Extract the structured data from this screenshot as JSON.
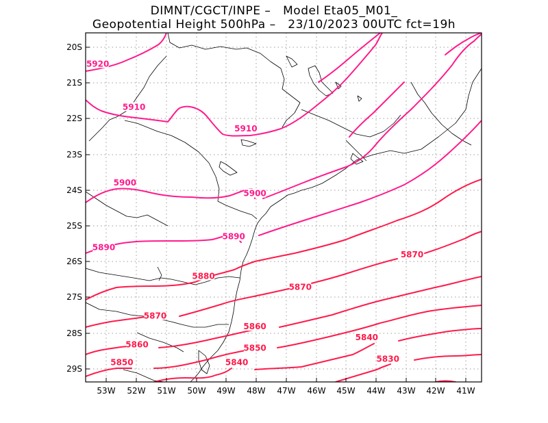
{
  "title": {
    "line1": "DIMNT/CGCT/INPE –   Model Eta05_M01_",
    "line2": "Geopotential Height 500hPa –   23/10/2023 00UTC fct=19h"
  },
  "axes": {
    "lat_labels": [
      "20S",
      "21S",
      "22S",
      "23S",
      "24S",
      "25S",
      "26S",
      "27S",
      "28S",
      "29S"
    ],
    "lon_labels": [
      "53W",
      "52W",
      "51W",
      "50W",
      "49W",
      "48W",
      "47W",
      "46W",
      "45W",
      "44W",
      "43W",
      "42W",
      "41W"
    ]
  },
  "colors": {
    "contour_magenta": "#ff1a8c",
    "contour_red": "#ff1a4a",
    "grid": "#9a9a9a",
    "coast": "#000000"
  },
  "chart_data": {
    "type": "contour-map",
    "variable": "Geopotential Height 500hPa",
    "units": "gpm",
    "lon_range": [
      -53.6,
      -40.5
    ],
    "lat_range": [
      -29.4,
      -19.7
    ],
    "contour_labels": [
      {
        "text": "5920",
        "lon": -53.2,
        "lat": -20.6
      },
      {
        "text": "5910",
        "lon": -52.0,
        "lat": -21.8
      },
      {
        "text": "5910",
        "lon": -48.3,
        "lat": -22.4
      },
      {
        "text": "5900",
        "lon": -52.3,
        "lat": -23.9
      },
      {
        "text": "5900",
        "lon": -48.0,
        "lat": -24.2
      },
      {
        "text": "5890",
        "lon": -48.7,
        "lat": -25.4
      },
      {
        "text": "5890",
        "lon": -53.0,
        "lat": -25.7
      },
      {
        "text": "5880",
        "lon": -49.7,
        "lat": -26.5
      },
      {
        "text": "5870",
        "lon": -46.5,
        "lat": -26.8
      },
      {
        "text": "5870",
        "lon": -42.8,
        "lat": -25.9
      },
      {
        "text": "5870",
        "lon": -51.3,
        "lat": -27.6
      },
      {
        "text": "5860",
        "lon": -48.0,
        "lat": -27.9
      },
      {
        "text": "5860",
        "lon": -51.9,
        "lat": -28.4
      },
      {
        "text": "5850",
        "lon": -48.0,
        "lat": -28.5
      },
      {
        "text": "5850",
        "lon": -52.4,
        "lat": -28.9
      },
      {
        "text": "5840",
        "lon": -48.6,
        "lat": -28.9
      },
      {
        "text": "5840",
        "lon": -44.3,
        "lat": -28.2
      },
      {
        "text": "5830",
        "lon": -43.6,
        "lat": -28.8
      }
    ]
  }
}
